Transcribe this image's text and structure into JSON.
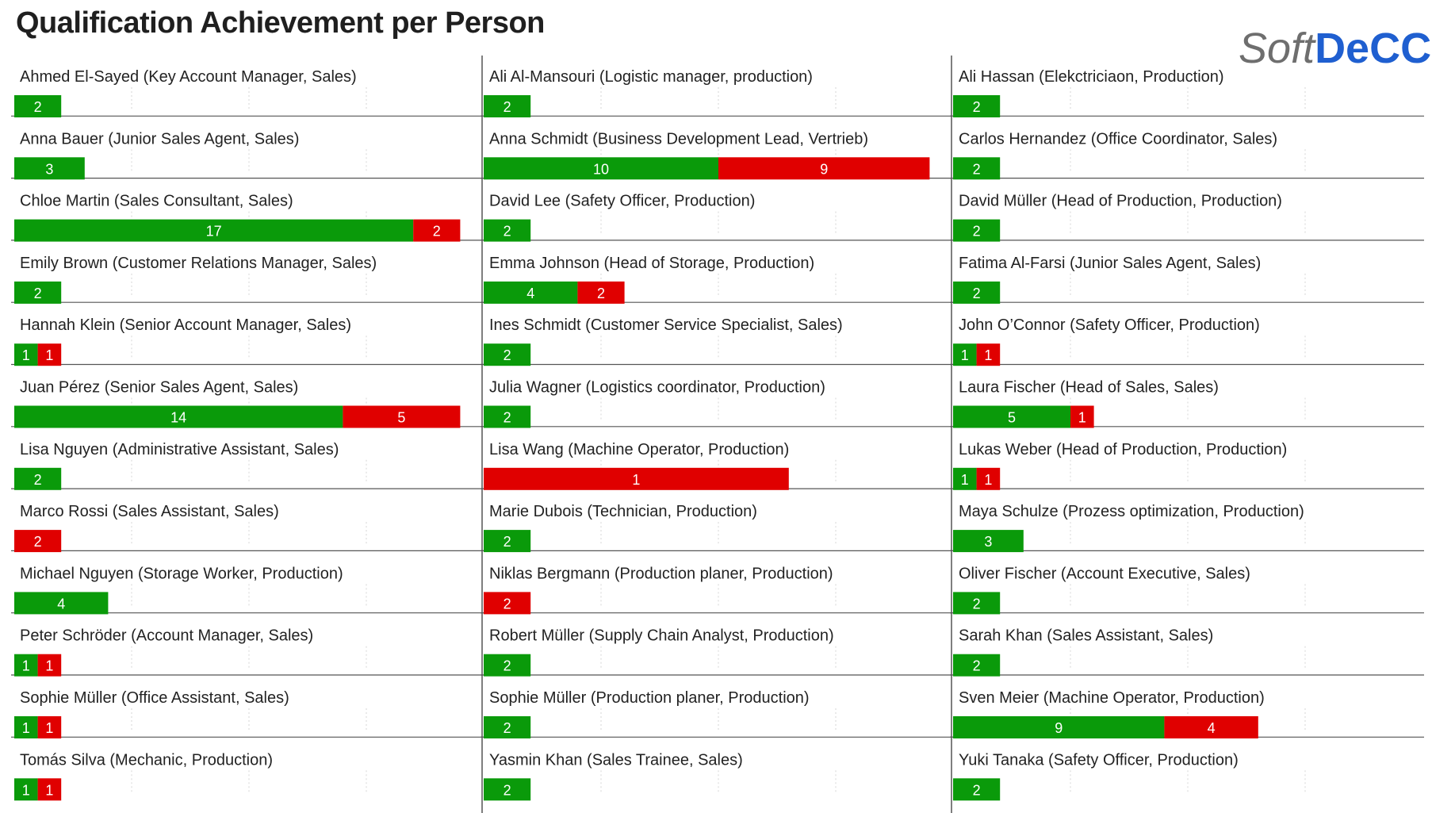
{
  "title": "Qualification Achievement per Person",
  "logo": {
    "part1": "Soft",
    "part2": "DeCC"
  },
  "chart_data": {
    "type": "bar",
    "title": "Qualification Achievement per Person",
    "orientation": "horizontal",
    "stacked": true,
    "layout": "small-multiples-3-columns",
    "colors": {
      "achieved": "#0a9a0a",
      "not_achieved": "#e00000"
    },
    "xlim": [
      0,
      19
    ],
    "columns": [
      [
        {
          "label": "Ahmed El-Sayed (Key Account Manager, Sales)",
          "green": 2,
          "red": 0
        },
        {
          "label": "Anna Bauer (Junior Sales Agent, Sales)",
          "green": 3,
          "red": 0
        },
        {
          "label": "Chloe Martin (Sales Consultant, Sales)",
          "green": 17,
          "red": 2
        },
        {
          "label": "Emily Brown (Customer Relations Manager, Sales)",
          "green": 2,
          "red": 0
        },
        {
          "label": "Hannah Klein (Senior Account Manager, Sales)",
          "green": 1,
          "red": 1
        },
        {
          "label": "Juan Pérez (Senior Sales Agent, Sales)",
          "green": 14,
          "red": 5
        },
        {
          "label": "Lisa Nguyen (Administrative Assistant, Sales)",
          "green": 2,
          "red": 0
        },
        {
          "label": "Marco Rossi (Sales Assistant, Sales)",
          "green": 0,
          "red": 2
        },
        {
          "label": "Michael Nguyen (Storage Worker, Production)",
          "green": 4,
          "red": 0
        },
        {
          "label": "Peter Schröder (Account Manager, Sales)",
          "green": 1,
          "red": 1
        },
        {
          "label": "Sophie Müller (Office Assistant, Sales)",
          "green": 1,
          "red": 1
        },
        {
          "label": "Tomás Silva (Mechanic, Production)",
          "green": 1,
          "red": 1
        }
      ],
      [
        {
          "label": "Ali Al-Mansouri (Logistic manager, production)",
          "green": 2,
          "red": 0
        },
        {
          "label": "Anna Schmidt (Business Development Lead, Vertrieb)",
          "green": 10,
          "red": 9
        },
        {
          "label": "David Lee (Safety Officer, Production)",
          "green": 2,
          "red": 0
        },
        {
          "label": "Emma Johnson (Head of Storage, Production)",
          "green": 4,
          "red": 2
        },
        {
          "label": "Ines Schmidt (Customer Service Specialist, Sales)",
          "green": 2,
          "red": 0
        },
        {
          "label": "Julia Wagner (Logistics coordinator, Production)",
          "green": 2,
          "red": 0
        },
        {
          "label": "Lisa Wang (Machine Operator, Production)",
          "green": 0,
          "red": 1,
          "red_span": 13
        },
        {
          "label": "Marie Dubois (Technician, Production)",
          "green": 2,
          "red": 0
        },
        {
          "label": "Niklas Bergmann (Production planer, Production)",
          "green": 0,
          "red": 2
        },
        {
          "label": "Robert Müller (Supply Chain Analyst, Production)",
          "green": 2,
          "red": 0
        },
        {
          "label": "Sophie Müller (Production planer, Production)",
          "green": 2,
          "red": 0
        },
        {
          "label": "Yasmin Khan (Sales Trainee, Sales)",
          "green": 2,
          "red": 0
        }
      ],
      [
        {
          "label": "Ali Hassan (Elekctriciaon, Production)",
          "green": 2,
          "red": 0
        },
        {
          "label": "Carlos Hernandez (Office Coordinator, Sales)",
          "green": 2,
          "red": 0
        },
        {
          "label": "David Müller (Head of Production, Production)",
          "green": 2,
          "red": 0
        },
        {
          "label": "Fatima Al-Farsi (Junior Sales Agent, Sales)",
          "green": 2,
          "red": 0
        },
        {
          "label": "John O’Connor (Safety Officer, Production)",
          "green": 1,
          "red": 1
        },
        {
          "label": "Laura Fischer (Head of Sales, Sales)",
          "green": 5,
          "red": 1
        },
        {
          "label": "Lukas Weber (Head of Production, Production)",
          "green": 1,
          "red": 1
        },
        {
          "label": "Maya Schulze (Prozess optimization, Production)",
          "green": 3,
          "red": 0
        },
        {
          "label": "Oliver Fischer (Account Executive, Sales)",
          "green": 2,
          "red": 0
        },
        {
          "label": "Sarah Khan (Sales Assistant, Sales)",
          "green": 2,
          "red": 0
        },
        {
          "label": "Sven Meier (Machine Operator, Production)",
          "green": 9,
          "red": 4
        },
        {
          "label": "Yuki Tanaka (Safety Officer, Production)",
          "green": 2,
          "red": 0
        }
      ]
    ]
  }
}
